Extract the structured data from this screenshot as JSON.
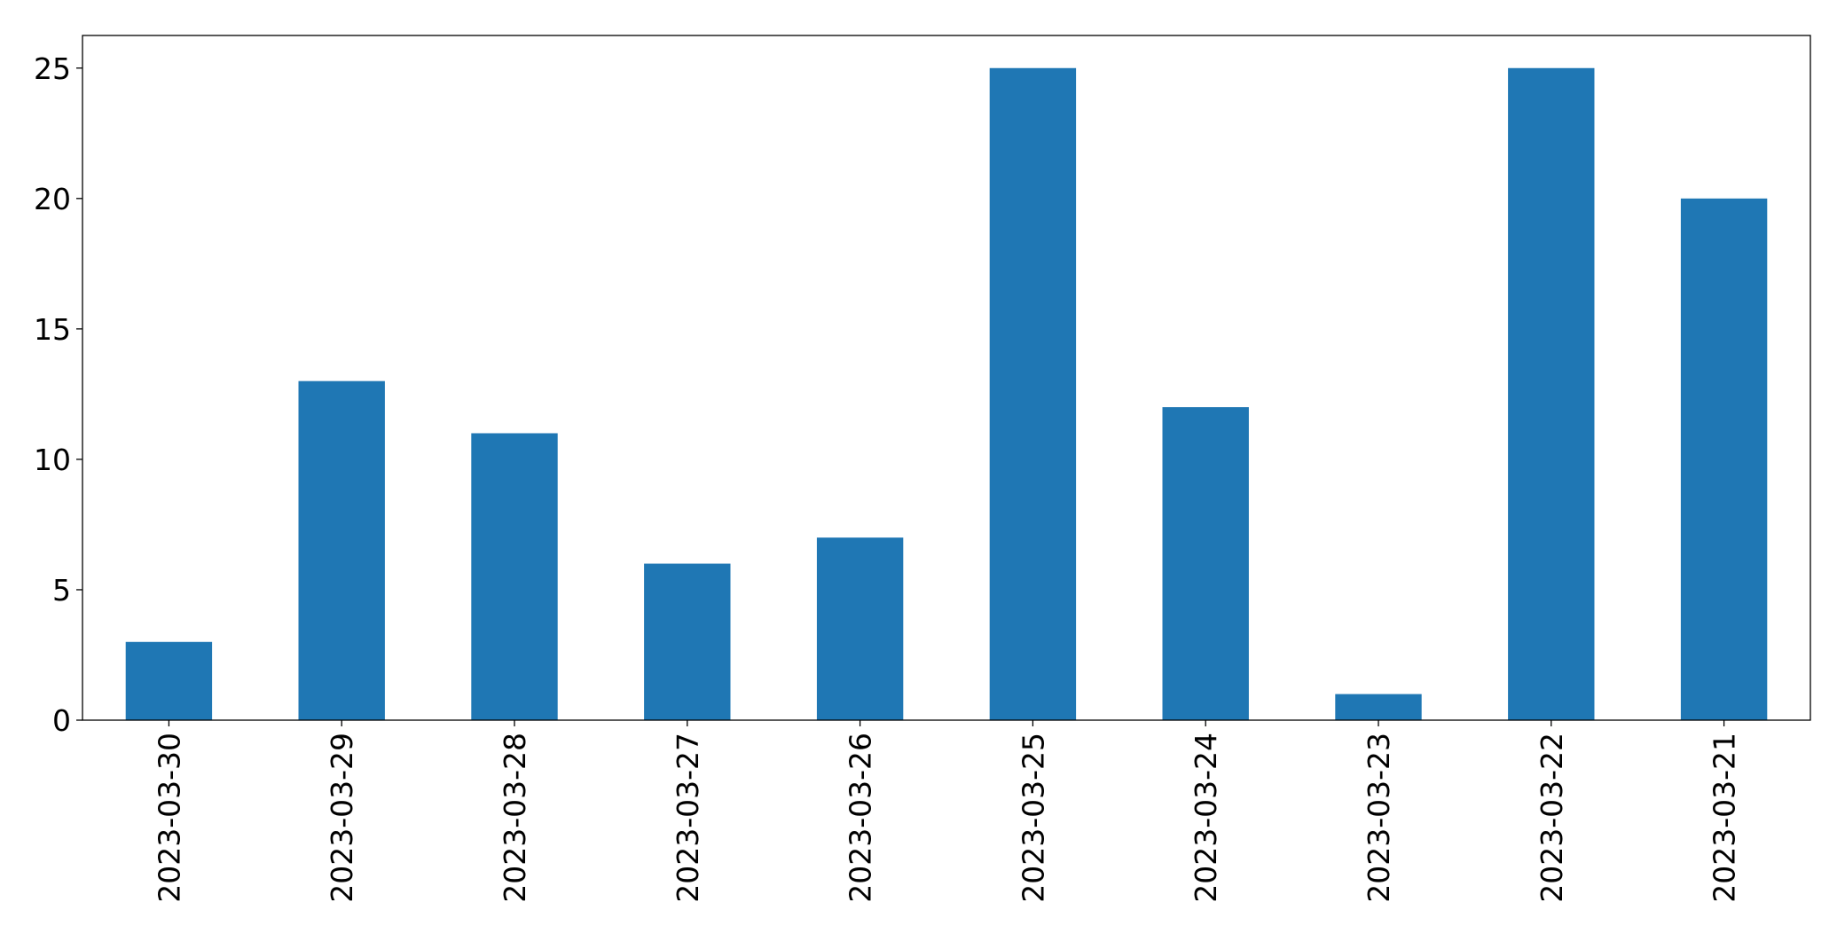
{
  "chart_data": {
    "type": "bar",
    "categories": [
      "2023-03-30",
      "2023-03-29",
      "2023-03-28",
      "2023-03-27",
      "2023-03-26",
      "2023-03-25",
      "2023-03-24",
      "2023-03-23",
      "2023-03-22",
      "2023-03-21"
    ],
    "values": [
      3,
      13,
      11,
      6,
      7,
      25,
      12,
      1,
      25,
      20
    ],
    "color": "#1f77b4",
    "ylim": [
      0,
      26.25
    ],
    "yticks": [
      0,
      5,
      10,
      15,
      20,
      25
    ],
    "grid": false
  }
}
